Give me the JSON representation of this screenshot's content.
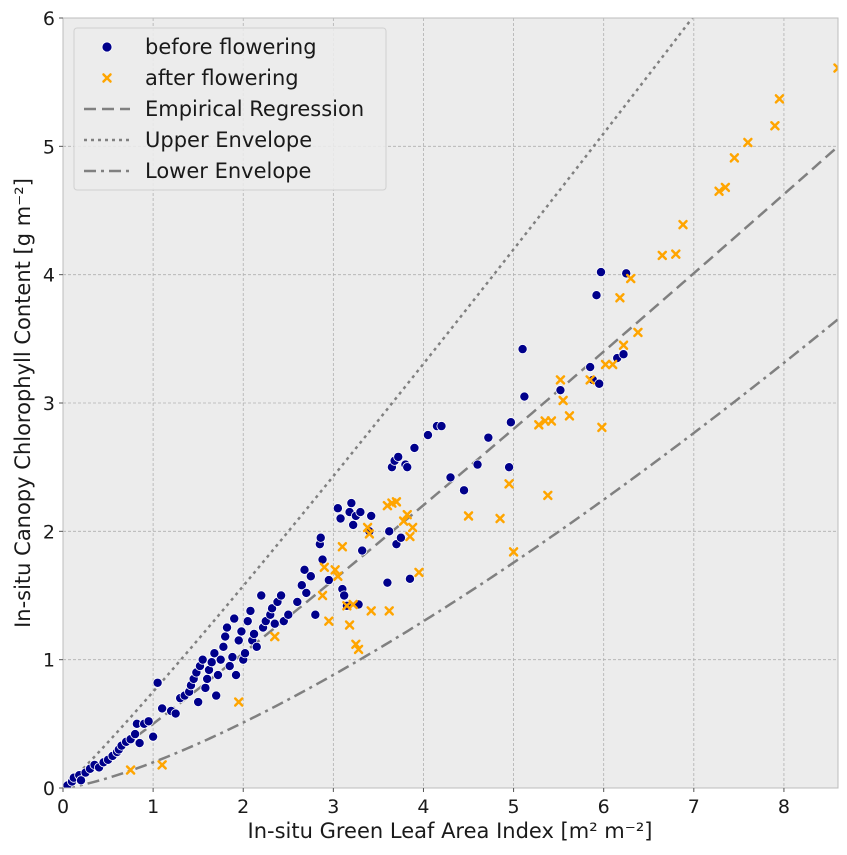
{
  "chart_data": {
    "type": "scatter",
    "xlabel": "In-situ Green Leaf Area Index [m² m⁻²]",
    "ylabel": "In-situ Canopy Chlorophyll Content [g m⁻²]",
    "xlim": [
      0,
      8.6
    ],
    "ylim": [
      0,
      6
    ],
    "x_ticks": [
      0,
      1,
      2,
      3,
      4,
      5,
      6,
      7,
      8
    ],
    "y_ticks": [
      0,
      1,
      2,
      3,
      4,
      5,
      6
    ],
    "grid": true,
    "legend_position": "top-left",
    "colors": {
      "background": "#ececec",
      "grid": "#b0b0b0",
      "before": "#00008b",
      "after": "#ffa500",
      "lines": "#808080"
    },
    "series": [
      {
        "name": "before flowering",
        "marker": "circle",
        "points": [
          [
            0.05,
            0.02
          ],
          [
            0.1,
            0.05
          ],
          [
            0.12,
            0.08
          ],
          [
            0.18,
            0.1
          ],
          [
            0.2,
            0.06
          ],
          [
            0.25,
            0.12
          ],
          [
            0.3,
            0.15
          ],
          [
            0.35,
            0.18
          ],
          [
            0.4,
            0.16
          ],
          [
            0.45,
            0.2
          ],
          [
            0.5,
            0.22
          ],
          [
            0.55,
            0.25
          ],
          [
            0.6,
            0.28
          ],
          [
            0.62,
            0.3
          ],
          [
            0.65,
            0.33
          ],
          [
            0.7,
            0.36
          ],
          [
            0.75,
            0.38
          ],
          [
            0.8,
            0.42
          ],
          [
            0.82,
            0.5
          ],
          [
            0.85,
            0.35
          ],
          [
            0.9,
            0.5
          ],
          [
            0.95,
            0.52
          ],
          [
            1.0,
            0.4
          ],
          [
            1.05,
            0.82
          ],
          [
            1.1,
            0.62
          ],
          [
            1.2,
            0.6
          ],
          [
            1.25,
            0.58
          ],
          [
            1.3,
            0.7
          ],
          [
            1.35,
            0.72
          ],
          [
            1.4,
            0.75
          ],
          [
            1.42,
            0.8
          ],
          [
            1.45,
            0.85
          ],
          [
            1.48,
            0.9
          ],
          [
            1.5,
            0.67
          ],
          [
            1.52,
            0.95
          ],
          [
            1.55,
            1.0
          ],
          [
            1.58,
            0.78
          ],
          [
            1.6,
            0.85
          ],
          [
            1.62,
            0.92
          ],
          [
            1.65,
            0.98
          ],
          [
            1.68,
            1.05
          ],
          [
            1.7,
            0.72
          ],
          [
            1.72,
            0.88
          ],
          [
            1.75,
            1.0
          ],
          [
            1.78,
            1.1
          ],
          [
            1.8,
            1.18
          ],
          [
            1.82,
            1.25
          ],
          [
            1.85,
            0.95
          ],
          [
            1.88,
            1.02
          ],
          [
            1.9,
            1.32
          ],
          [
            1.92,
            0.88
          ],
          [
            1.95,
            1.15
          ],
          [
            1.98,
            1.22
          ],
          [
            2.0,
            1.0
          ],
          [
            2.02,
            1.05
          ],
          [
            2.05,
            1.3
          ],
          [
            2.08,
            1.38
          ],
          [
            2.1,
            1.15
          ],
          [
            2.12,
            1.2
          ],
          [
            2.15,
            1.1
          ],
          [
            2.2,
            1.5
          ],
          [
            2.22,
            1.25
          ],
          [
            2.25,
            1.3
          ],
          [
            2.3,
            1.35
          ],
          [
            2.32,
            1.4
          ],
          [
            2.35,
            1.28
          ],
          [
            2.38,
            1.45
          ],
          [
            2.42,
            1.5
          ],
          [
            2.45,
            1.3
          ],
          [
            2.5,
            1.35
          ],
          [
            2.6,
            1.45
          ],
          [
            2.65,
            1.58
          ],
          [
            2.68,
            1.7
          ],
          [
            2.7,
            1.52
          ],
          [
            2.75,
            1.65
          ],
          [
            2.8,
            1.35
          ],
          [
            2.85,
            1.9
          ],
          [
            2.86,
            1.95
          ],
          [
            2.88,
            1.78
          ],
          [
            2.95,
            1.62
          ],
          [
            3.05,
            2.18
          ],
          [
            3.08,
            2.1
          ],
          [
            3.1,
            1.55
          ],
          [
            3.12,
            1.5
          ],
          [
            3.15,
            1.42
          ],
          [
            3.18,
            2.15
          ],
          [
            3.2,
            2.22
          ],
          [
            3.22,
            2.05
          ],
          [
            3.25,
            2.12
          ],
          [
            3.28,
            1.43
          ],
          [
            3.3,
            2.15
          ],
          [
            3.32,
            1.85
          ],
          [
            3.4,
            2.0
          ],
          [
            3.42,
            2.12
          ],
          [
            3.6,
            1.6
          ],
          [
            3.62,
            2.0
          ],
          [
            3.65,
            2.5
          ],
          [
            3.68,
            2.55
          ],
          [
            3.7,
            1.9
          ],
          [
            3.72,
            2.58
          ],
          [
            3.75,
            1.95
          ],
          [
            3.8,
            2.52
          ],
          [
            3.82,
            2.5
          ],
          [
            3.85,
            1.63
          ],
          [
            3.9,
            2.65
          ],
          [
            4.05,
            2.75
          ],
          [
            4.15,
            2.82
          ],
          [
            4.2,
            2.82
          ],
          [
            4.3,
            2.42
          ],
          [
            4.45,
            2.32
          ],
          [
            4.6,
            2.52
          ],
          [
            4.72,
            2.73
          ],
          [
            4.95,
            2.5
          ],
          [
            4.97,
            2.85
          ],
          [
            5.1,
            3.42
          ],
          [
            5.12,
            3.05
          ],
          [
            5.52,
            3.1
          ],
          [
            5.85,
            3.28
          ],
          [
            5.88,
            3.18
          ],
          [
            5.92,
            3.84
          ],
          [
            5.95,
            3.15
          ],
          [
            5.97,
            4.02
          ],
          [
            6.15,
            3.35
          ],
          [
            6.22,
            3.38
          ],
          [
            6.25,
            4.01
          ]
        ]
      },
      {
        "name": "after flowering",
        "marker": "x",
        "points": [
          [
            0.75,
            0.14
          ],
          [
            1.1,
            0.18
          ],
          [
            1.95,
            0.67
          ],
          [
            2.35,
            1.18
          ],
          [
            2.88,
            1.5
          ],
          [
            2.9,
            1.72
          ],
          [
            2.95,
            1.3
          ],
          [
            3.02,
            1.7
          ],
          [
            3.05,
            1.65
          ],
          [
            3.1,
            1.88
          ],
          [
            3.15,
            1.42
          ],
          [
            3.18,
            1.27
          ],
          [
            3.22,
            1.43
          ],
          [
            3.25,
            1.12
          ],
          [
            3.28,
            1.08
          ],
          [
            3.38,
            2.03
          ],
          [
            3.4,
            1.98
          ],
          [
            3.42,
            1.38
          ],
          [
            3.6,
            2.2
          ],
          [
            3.62,
            1.38
          ],
          [
            3.65,
            2.22
          ],
          [
            3.7,
            2.23
          ],
          [
            3.78,
            2.08
          ],
          [
            3.82,
            2.13
          ],
          [
            3.85,
            1.96
          ],
          [
            3.88,
            2.03
          ],
          [
            3.95,
            1.68
          ],
          [
            4.5,
            2.12
          ],
          [
            4.85,
            2.1
          ],
          [
            4.95,
            2.37
          ],
          [
            5.0,
            1.84
          ],
          [
            5.28,
            2.83
          ],
          [
            5.35,
            2.86
          ],
          [
            5.38,
            2.28
          ],
          [
            5.42,
            2.86
          ],
          [
            5.52,
            3.18
          ],
          [
            5.55,
            3.02
          ],
          [
            5.62,
            2.9
          ],
          [
            5.85,
            3.18
          ],
          [
            5.98,
            2.81
          ],
          [
            6.02,
            3.3
          ],
          [
            6.1,
            3.3
          ],
          [
            6.18,
            3.82
          ],
          [
            6.22,
            3.45
          ],
          [
            6.3,
            3.97
          ],
          [
            6.38,
            3.55
          ],
          [
            6.65,
            4.15
          ],
          [
            6.8,
            4.16
          ],
          [
            6.88,
            4.39
          ],
          [
            7.28,
            4.65
          ],
          [
            7.35,
            4.68
          ],
          [
            7.45,
            4.91
          ],
          [
            7.6,
            5.03
          ],
          [
            7.9,
            5.16
          ],
          [
            7.95,
            5.37
          ],
          [
            8.6,
            5.61
          ]
        ]
      }
    ],
    "lines": [
      {
        "name": "Empirical Regression",
        "style": "dashed",
        "a": 0.5,
        "b": 1.07
      },
      {
        "name": "Upper Envelope",
        "style": "dotted",
        "a": 0.75,
        "b": 1.07
      },
      {
        "name": "Lower Envelope",
        "style": "dashdot",
        "a": 0.2,
        "b": 1.35
      }
    ]
  }
}
